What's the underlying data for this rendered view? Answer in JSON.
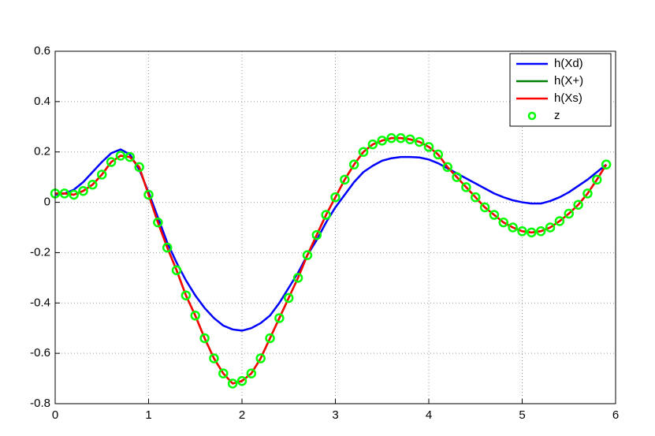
{
  "chart_data": {
    "type": "line",
    "x": [
      0,
      0.1,
      0.2,
      0.3,
      0.4,
      0.5,
      0.6,
      0.7,
      0.8,
      0.9,
      1,
      1.1,
      1.2,
      1.3,
      1.4,
      1.5,
      1.6,
      1.7,
      1.8,
      1.9,
      2,
      2.1,
      2.2,
      2.3,
      2.4,
      2.5,
      2.6,
      2.7,
      2.8,
      2.9,
      3,
      3.1,
      3.2,
      3.3,
      3.4,
      3.5,
      3.6,
      3.7,
      3.8,
      3.9,
      4,
      4.1,
      4.2,
      4.3,
      4.4,
      4.5,
      4.6,
      4.7,
      4.8,
      4.9,
      5,
      5.1,
      5.2,
      5.3,
      5.4,
      5.5,
      5.6,
      5.7,
      5.8,
      5.9
    ],
    "series": [
      {
        "name": "h(Xd)",
        "color": "#0000ff",
        "values": [
          0.03,
          0.035,
          0.05,
          0.08,
          0.12,
          0.16,
          0.195,
          0.21,
          0.19,
          0.13,
          0.04,
          -0.06,
          -0.16,
          -0.24,
          -0.31,
          -0.37,
          -0.42,
          -0.46,
          -0.49,
          -0.505,
          -0.51,
          -0.5,
          -0.48,
          -0.45,
          -0.4,
          -0.34,
          -0.28,
          -0.21,
          -0.15,
          -0.08,
          -0.02,
          0.03,
          0.08,
          0.12,
          0.145,
          0.165,
          0.175,
          0.18,
          0.18,
          0.178,
          0.17,
          0.155,
          0.135,
          0.115,
          0.095,
          0.075,
          0.055,
          0.035,
          0.02,
          0.008,
          0,
          -0.005,
          -0.005,
          0.005,
          0.02,
          0.04,
          0.065,
          0.09,
          0.12,
          0.15
        ]
      },
      {
        "name": "h(X+)",
        "color": "#008000",
        "values": [
          0.035,
          0.035,
          0.03,
          0.045,
          0.07,
          0.11,
          0.16,
          0.185,
          0.18,
          0.14,
          0.03,
          -0.08,
          -0.18,
          -0.27,
          -0.37,
          -0.45,
          -0.54,
          -0.62,
          -0.68,
          -0.72,
          -0.71,
          -0.68,
          -0.62,
          -0.54,
          -0.46,
          -0.38,
          -0.3,
          -0.21,
          -0.13,
          -0.05,
          0.02,
          0.09,
          0.15,
          0.2,
          0.23,
          0.245,
          0.255,
          0.255,
          0.25,
          0.24,
          0.22,
          0.19,
          0.14,
          0.1,
          0.06,
          0.02,
          -0.02,
          -0.05,
          -0.08,
          -0.1,
          -0.115,
          -0.12,
          -0.115,
          -0.1,
          -0.075,
          -0.045,
          -0.01,
          0.035,
          0.09,
          0.15
        ]
      },
      {
        "name": "h(Xs)",
        "color": "#ff0000",
        "values": [
          0.035,
          0.035,
          0.03,
          0.045,
          0.07,
          0.11,
          0.16,
          0.185,
          0.18,
          0.14,
          0.03,
          -0.08,
          -0.18,
          -0.27,
          -0.37,
          -0.45,
          -0.54,
          -0.62,
          -0.68,
          -0.72,
          -0.71,
          -0.68,
          -0.62,
          -0.54,
          -0.46,
          -0.38,
          -0.3,
          -0.21,
          -0.13,
          -0.05,
          0.02,
          0.09,
          0.15,
          0.2,
          0.23,
          0.245,
          0.255,
          0.255,
          0.25,
          0.24,
          0.22,
          0.19,
          0.14,
          0.1,
          0.06,
          0.02,
          -0.02,
          -0.05,
          -0.08,
          -0.1,
          -0.115,
          -0.12,
          -0.115,
          -0.1,
          -0.075,
          -0.045,
          -0.01,
          0.035,
          0.09,
          0.15
        ]
      },
      {
        "name": "z",
        "color": "#00ff00",
        "marker": "circle",
        "values": [
          0.035,
          0.035,
          0.03,
          0.045,
          0.07,
          0.11,
          0.16,
          0.185,
          0.18,
          0.14,
          0.03,
          -0.08,
          -0.18,
          -0.27,
          -0.37,
          -0.45,
          -0.54,
          -0.62,
          -0.68,
          -0.72,
          -0.71,
          -0.68,
          -0.62,
          -0.54,
          -0.46,
          -0.38,
          -0.3,
          -0.21,
          -0.13,
          -0.05,
          0.02,
          0.09,
          0.15,
          0.2,
          0.23,
          0.245,
          0.255,
          0.255,
          0.25,
          0.24,
          0.22,
          0.19,
          0.14,
          0.1,
          0.06,
          0.02,
          -0.02,
          -0.05,
          -0.08,
          -0.1,
          -0.115,
          -0.12,
          -0.115,
          -0.1,
          -0.075,
          -0.045,
          -0.01,
          0.035,
          0.09,
          0.15
        ]
      }
    ],
    "xlim": [
      0,
      6
    ],
    "xticks": [
      0,
      1,
      2,
      3,
      4,
      5,
      6
    ],
    "ylim": [
      -0.8,
      0.6
    ],
    "yticks": [
      -0.8,
      -0.6,
      -0.4,
      -0.2,
      0,
      0.2,
      0.4,
      0.6
    ],
    "grid": true,
    "legend": "northeast"
  }
}
